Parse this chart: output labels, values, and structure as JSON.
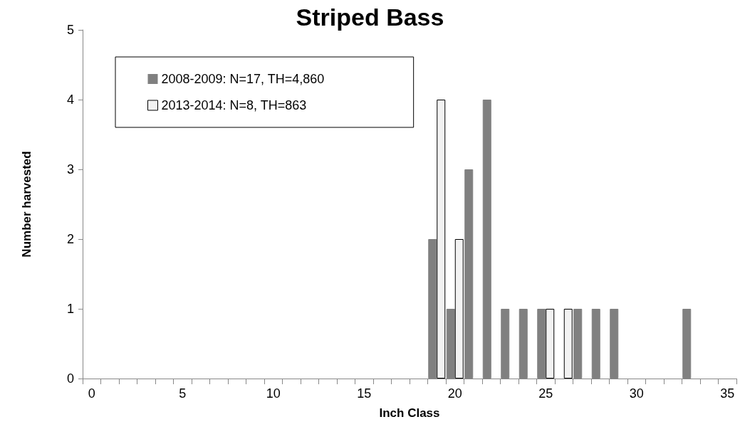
{
  "chart_data": {
    "type": "bar",
    "title": "Striped Bass",
    "xlabel": "Inch Class",
    "ylabel": "Number harvested",
    "categories": [
      "0",
      null,
      null,
      null,
      null,
      "5",
      null,
      null,
      null,
      null,
      "10",
      null,
      null,
      null,
      null,
      "15",
      null,
      null,
      null,
      null,
      "20",
      null,
      null,
      null,
      null,
      "25",
      null,
      null,
      null,
      null,
      "30",
      null,
      null,
      null,
      null,
      "35"
    ],
    "series": [
      {
        "name": "2008-2009: N=17, TH=4,860",
        "color": "#808080",
        "values": [
          0,
          0,
          0,
          0,
          0,
          0,
          0,
          0,
          0,
          0,
          0,
          0,
          0,
          0,
          0,
          0,
          0,
          0,
          0,
          2,
          1,
          3,
          4,
          1,
          1,
          1,
          0,
          1,
          1,
          1,
          0,
          0,
          0,
          1,
          0,
          0
        ]
      },
      {
        "name": "2013-2014: N=8, TH=863",
        "color": "#f2f2f2",
        "values": [
          0,
          0,
          0,
          0,
          0,
          0,
          0,
          0,
          0,
          0,
          0,
          0,
          0,
          0,
          0,
          0,
          0,
          0,
          0,
          4,
          2,
          0,
          0,
          0,
          0,
          1,
          1,
          0,
          0,
          0,
          0,
          0,
          0,
          0,
          0,
          0
        ]
      }
    ],
    "ylim": [
      0,
      5
    ],
    "yticks": [
      0,
      1,
      2,
      3,
      4,
      5
    ],
    "grid": false,
    "legend": "top left"
  }
}
